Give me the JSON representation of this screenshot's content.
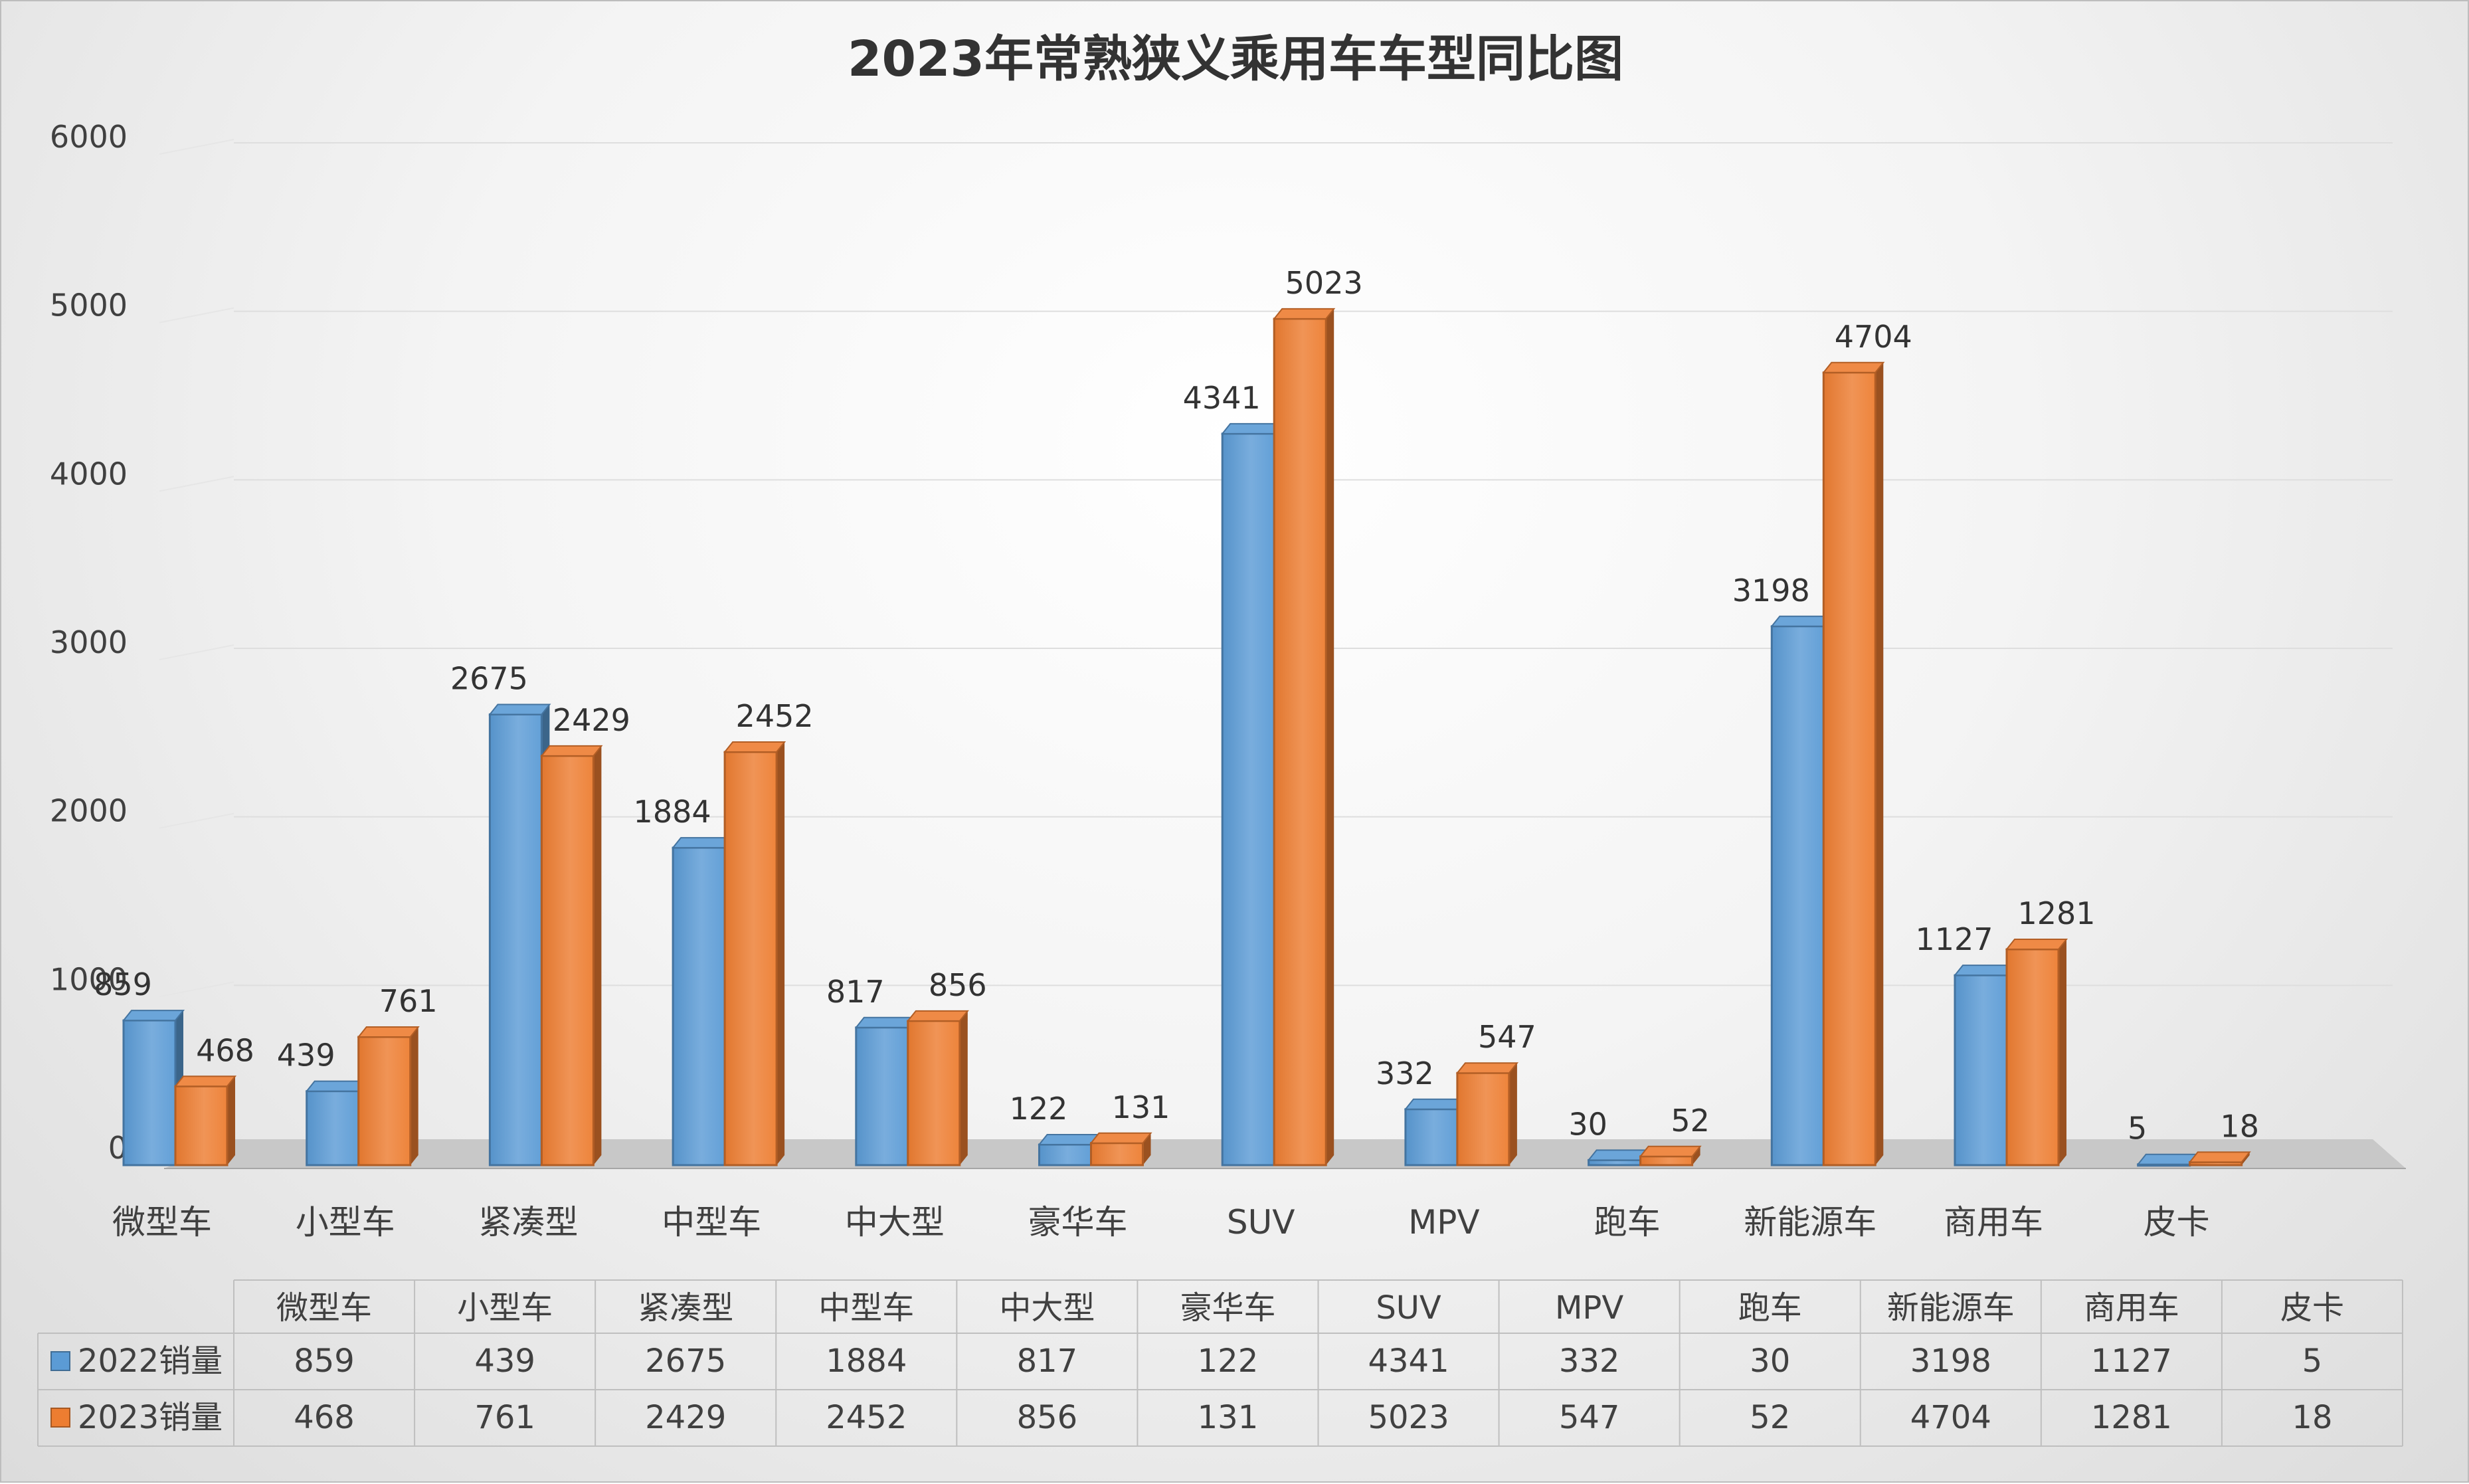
{
  "chart_data": {
    "type": "bar",
    "title": "2023年常熟狭义乘用车车型同比图",
    "xlabel": "",
    "ylabel": "",
    "ylim": [
      0,
      6000
    ],
    "yticks": [
      0,
      1000,
      2000,
      3000,
      4000,
      5000,
      6000
    ],
    "grid": true,
    "legend": "data-table-bottom",
    "categories": [
      "微型车",
      "小型车",
      "紧凑型",
      "中型车",
      "中大型",
      "豪华车",
      "SUV",
      "MPV",
      "跑车",
      "新能源车",
      "商用车",
      "皮卡"
    ],
    "series": [
      {
        "name": "2022销量",
        "color": "#5B9BD5",
        "values": [
          859,
          439,
          2675,
          1884,
          817,
          122,
          4341,
          332,
          30,
          3198,
          1127,
          5
        ]
      },
      {
        "name": "2023销量",
        "color": "#ED7D31",
        "values": [
          468,
          761,
          2429,
          2452,
          856,
          131,
          5023,
          547,
          52,
          4704,
          1281,
          18
        ]
      }
    ]
  }
}
